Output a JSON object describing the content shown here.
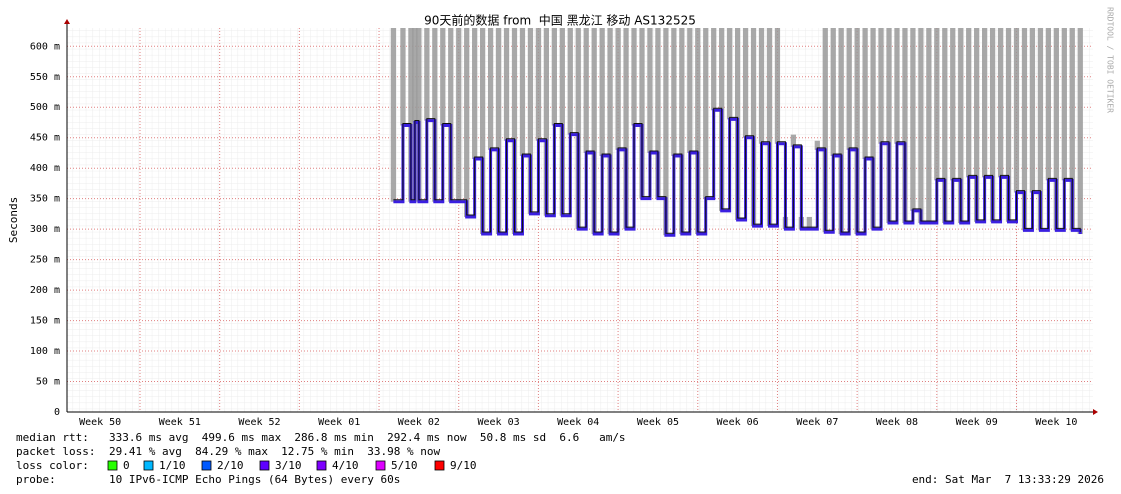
{
  "chart_data": {
    "type": "line",
    "title": "90天前的数据 from  中国 黑龙江 移动 AS132525",
    "y_label": "Seconds",
    "watermark": "RRDTOOL / TOBI OETIKER",
    "xlim": [
      0.084,
      12.96
    ],
    "xticks": [
      {
        "value": 0,
        "label": "Week 50"
      },
      {
        "value": 1,
        "label": "Week 51"
      },
      {
        "value": 2,
        "label": "Week 52"
      },
      {
        "value": 3,
        "label": "Week 01"
      },
      {
        "value": 4,
        "label": "Week 02"
      },
      {
        "value": 5,
        "label": "Week 03"
      },
      {
        "value": 6,
        "label": "Week 04"
      },
      {
        "value": 7,
        "label": "Week 05"
      },
      {
        "value": 8,
        "label": "Week 06"
      },
      {
        "value": 9,
        "label": "Week 07"
      },
      {
        "value": 10,
        "label": "Week 08"
      },
      {
        "value": 11,
        "label": "Week 09"
      },
      {
        "value": 12,
        "label": "Week 10"
      }
    ],
    "ylim": [
      0,
      630
    ],
    "yticks": [
      0,
      {
        "value": 50,
        "label": "50 m"
      },
      {
        "value": 100,
        "label": "100 m"
      },
      {
        "value": 150,
        "label": "150 m"
      },
      {
        "value": 200,
        "label": "200 m"
      },
      {
        "value": 250,
        "label": "250 m"
      },
      {
        "value": 300,
        "label": "300 m"
      },
      {
        "value": 350,
        "label": "350 m"
      },
      {
        "value": 400,
        "label": "400 m"
      },
      {
        "value": 450,
        "label": "450 m"
      },
      {
        "value": 500,
        "label": "500 m"
      },
      {
        "value": 550,
        "label": "550 m"
      },
      {
        "value": 600,
        "label": "600 m"
      }
    ],
    "grid": true,
    "x": [
      4.18,
      4.3,
      4.4,
      4.45,
      4.5,
      4.6,
      4.7,
      4.8,
      4.9,
      5.0,
      5.1,
      5.2,
      5.3,
      5.4,
      5.5,
      5.6,
      5.7,
      5.8,
      5.9,
      6.0,
      6.1,
      6.2,
      6.3,
      6.4,
      6.5,
      6.6,
      6.7,
      6.8,
      6.9,
      7.0,
      7.1,
      7.2,
      7.3,
      7.4,
      7.5,
      7.6,
      7.7,
      7.8,
      7.9,
      8.0,
      8.1,
      8.2,
      8.3,
      8.4,
      8.5,
      8.6,
      8.7,
      8.8,
      8.9,
      9.0,
      9.1,
      9.2,
      9.3,
      9.4,
      9.5,
      9.6,
      9.7,
      9.8,
      9.9,
      10.0,
      10.1,
      10.2,
      10.3,
      10.4,
      10.5,
      10.6,
      10.7,
      10.8,
      10.9,
      11.0,
      11.1,
      11.2,
      11.3,
      11.4,
      11.5,
      11.6,
      11.7,
      11.8,
      11.9,
      12.0,
      12.1,
      12.2,
      12.3,
      12.4,
      12.5,
      12.6,
      12.7,
      12.8
    ],
    "series": [
      {
        "color": "#999999",
        "values": [
          630,
          630,
          630,
          630,
          630,
          630,
          630,
          630,
          630,
          630,
          630,
          630,
          630,
          630,
          630,
          630,
          630,
          630,
          630,
          630,
          630,
          630,
          630,
          630,
          630,
          630,
          630,
          630,
          630,
          630,
          630,
          630,
          630,
          630,
          630,
          630,
          630,
          630,
          630,
          630,
          630,
          630,
          630,
          630,
          630,
          630,
          630,
          630,
          630,
          630,
          320,
          455,
          320,
          320,
          445,
          630,
          630,
          630,
          630,
          630,
          630,
          630,
          630,
          630,
          630,
          630,
          630,
          630,
          630,
          630,
          630,
          630,
          630,
          630,
          630,
          630,
          630,
          630,
          630,
          630,
          630,
          630,
          630,
          630,
          630,
          630,
          630,
          630
        ]
      },
      {
        "color": "#3a1fe0",
        "values": [
          345,
          470,
          345,
          475,
          345,
          478,
          345,
          470,
          345,
          345,
          320,
          415,
          292,
          430,
          292,
          445,
          292,
          420,
          325,
          445,
          322,
          470,
          322,
          455,
          300,
          425,
          292,
          420,
          292,
          430,
          300,
          470,
          350,
          425,
          350,
          290,
          420,
          292,
          425,
          292,
          350,
          495,
          330,
          480,
          315,
          450,
          305,
          440,
          305,
          440,
          300,
          435,
          300,
          300,
          430,
          295,
          420,
          292,
          430,
          292,
          415,
          300,
          440,
          310,
          440,
          310,
          330,
          310,
          310,
          380,
          310,
          380,
          310,
          385,
          312,
          385,
          312,
          385,
          312,
          360,
          298,
          360,
          298,
          380,
          298,
          380,
          298,
          292
        ]
      }
    ],
    "stats": [
      {
        "label": "median rtt:",
        "text": "333.6 ms avg  499.6 ms max  286.8 ms min  292.4 ms now  50.8 ms sd  6.6   am/s"
      },
      {
        "label": "packet loss:",
        "text": "29.41 % avg  84.29 % max  12.75 % min  33.98 % now"
      }
    ],
    "loss_label": "loss color:",
    "loss_colors": [
      {
        "label": "0",
        "color": "#26ff00"
      },
      {
        "label": "1/10",
        "color": "#00b8ff"
      },
      {
        "label": "2/10",
        "color": "#0059ff"
      },
      {
        "label": "3/10",
        "color": "#5e00ff"
      },
      {
        "label": "4/10",
        "color": "#7e00ff"
      },
      {
        "label": "5/10",
        "color": "#dd00ff"
      },
      {
        "label": "9/10",
        "color": "#ff0000"
      }
    ],
    "probe_label": "probe:",
    "probe": "10 IPv6-ICMP Echo Pings (64 Bytes) every 60s",
    "end": "end: Sat Mar  7 13:33:29 2026"
  }
}
